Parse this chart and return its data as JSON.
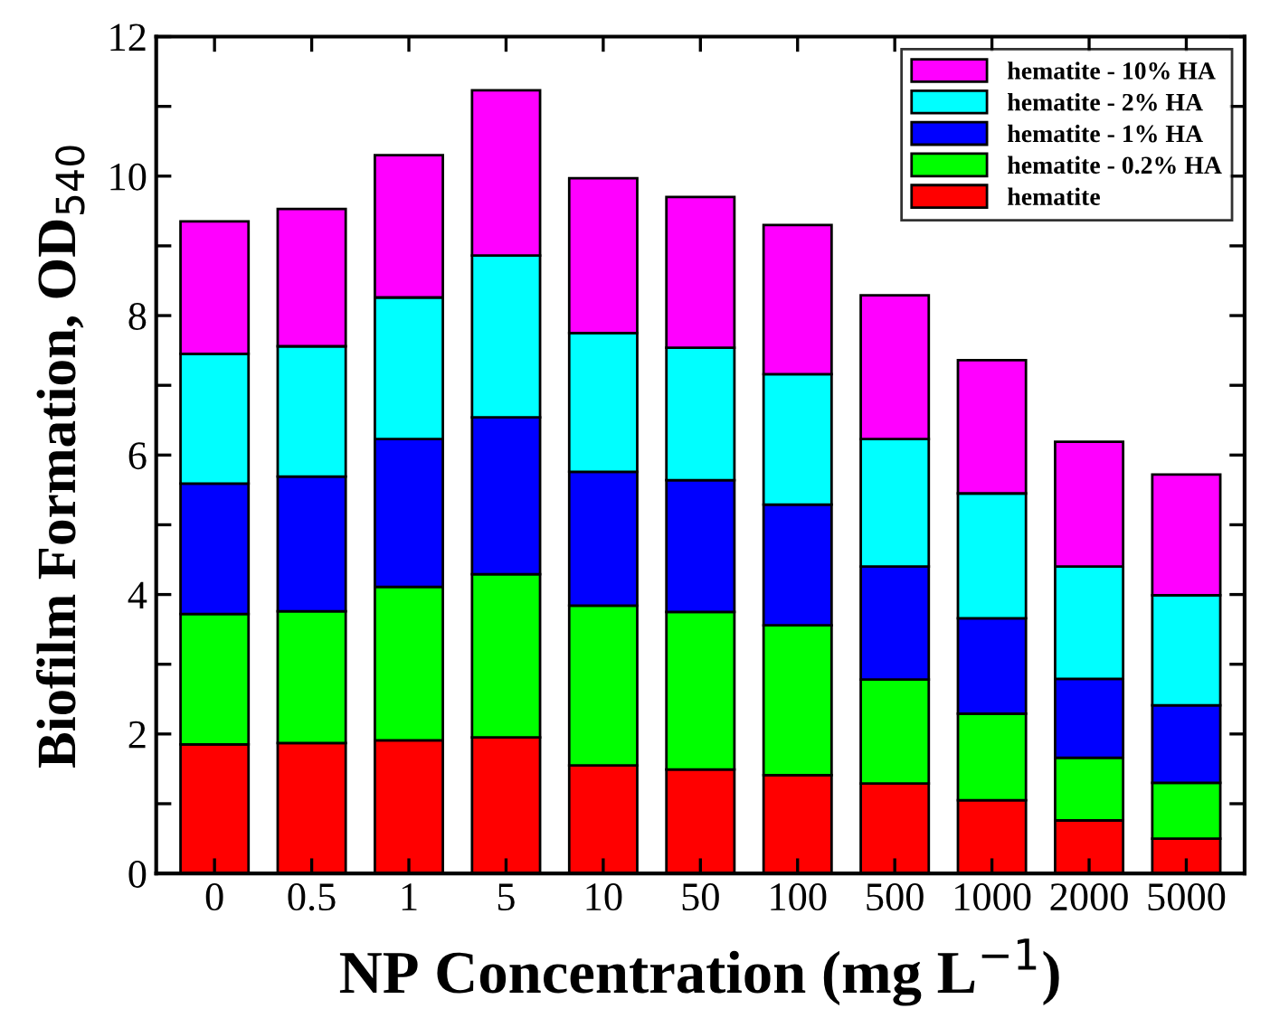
{
  "chart_data": {
    "type": "bar",
    "stacked": true,
    "xlabel": "NP Concentration (mg L$^{−1}$)",
    "ylabel": "Biofilm Formation, OD$_{540}$",
    "categories": [
      "0",
      "0.5",
      "1",
      "5",
      "10",
      "50",
      "100",
      "500",
      "1000",
      "2000",
      "5000"
    ],
    "series": [
      {
        "name": "hematite",
        "color": "#ff0000",
        "values": [
          1.85,
          1.87,
          1.91,
          1.95,
          1.55,
          1.49,
          1.41,
          1.29,
          1.05,
          0.76,
          0.5
        ]
      },
      {
        "name": "hematite - 0.2% HA",
        "color": "#00ff00",
        "values": [
          1.87,
          1.89,
          2.2,
          2.34,
          2.29,
          2.26,
          2.15,
          1.49,
          1.24,
          0.9,
          0.8
        ]
      },
      {
        "name": "hematite - 1% HA",
        "color": "#0000ff",
        "values": [
          1.87,
          1.93,
          2.12,
          2.25,
          1.92,
          1.89,
          1.73,
          1.62,
          1.37,
          1.13,
          1.11
        ]
      },
      {
        "name": "hematite - 2% HA",
        "color": "#00ffff",
        "values": [
          1.86,
          1.87,
          2.03,
          2.32,
          1.99,
          1.9,
          1.87,
          1.83,
          1.79,
          1.61,
          1.58
        ]
      },
      {
        "name": "hematite - 10% HA",
        "color": "#ff00ff",
        "values": [
          1.9,
          1.97,
          2.04,
          2.37,
          2.22,
          2.16,
          2.14,
          2.06,
          1.91,
          1.79,
          1.73
        ]
      }
    ],
    "ylim": [
      0,
      12
    ],
    "yticks": [
      0,
      {
        "value": 1,
        "label": null
      },
      2,
      {
        "value": 3,
        "label": null
      },
      4,
      {
        "value": 5,
        "label": null
      },
      6,
      {
        "value": 7,
        "label": null
      },
      8,
      {
        "value": 9,
        "label": null
      },
      10,
      {
        "value": 11,
        "label": null
      },
      12
    ],
    "grid": false,
    "legend": "top right"
  }
}
